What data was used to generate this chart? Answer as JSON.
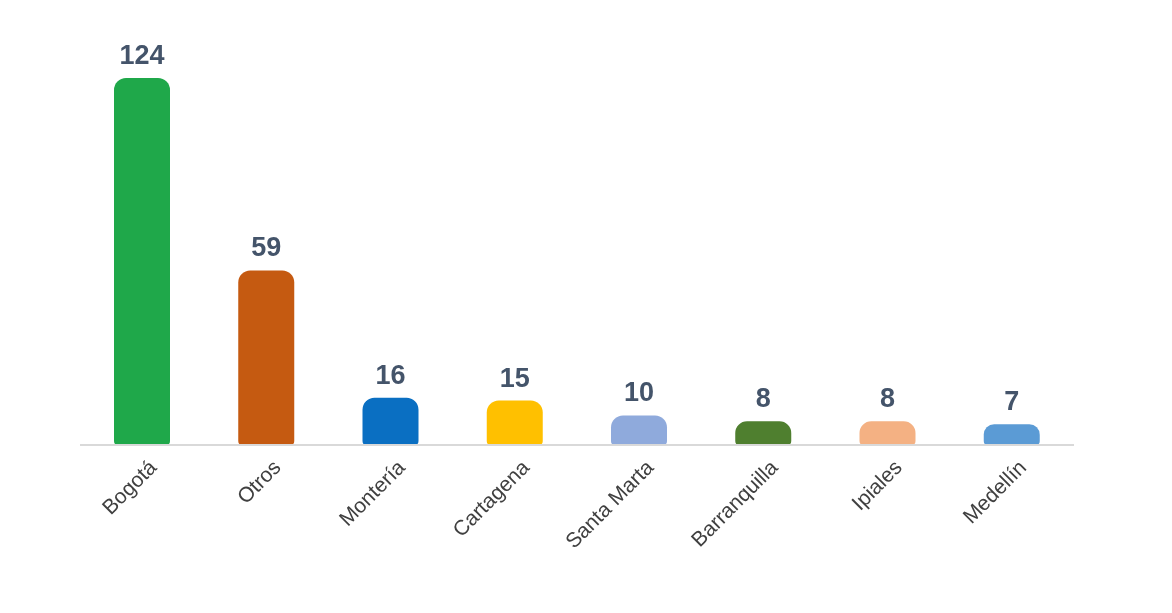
{
  "chart_data": {
    "type": "bar",
    "categories": [
      "Bogotá",
      "Otros",
      "Montería",
      "Cartagena",
      "Santa Marta",
      "Barranquilla",
      "Ipiales",
      "Medellín"
    ],
    "values": [
      124,
      59,
      16,
      15,
      10,
      8,
      8,
      7
    ],
    "colors": [
      "#1fa84a",
      "#c55a11",
      "#0a6fc2",
      "#ffc000",
      "#8faadc",
      "#4f7f2f",
      "#f4b183",
      "#5b9bd5"
    ],
    "data_labels": true
  }
}
